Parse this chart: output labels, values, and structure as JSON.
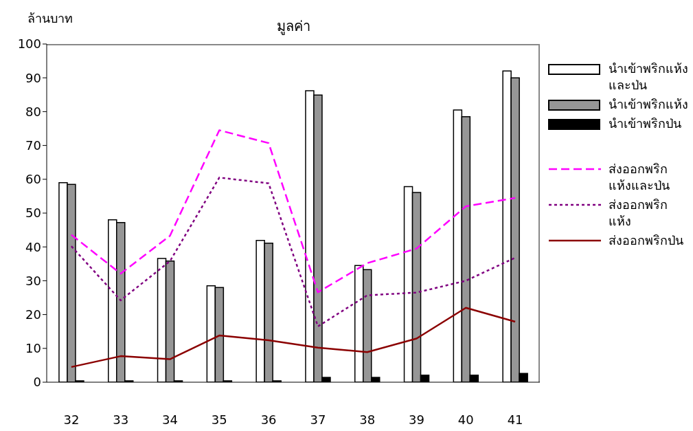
{
  "chart_data": {
    "type": "bar",
    "title": "มูลค่า",
    "ylabel": "ล้านบาท",
    "categories": [
      "32",
      "33",
      "34",
      "35",
      "36",
      "37",
      "38",
      "39",
      "40",
      "41"
    ],
    "series": [
      {
        "name": "นำเข้าพริกแห้งและป่น",
        "color": "#ffffff",
        "values": [
          59,
          48,
          36.6,
          28.5,
          41.9,
          86.2,
          34.5,
          57.8,
          80.5,
          92
        ]
      },
      {
        "name": "นำเข้าพริกแห้ง",
        "color": "#969696",
        "values": [
          58.5,
          47.2,
          35.8,
          28,
          41.1,
          84.9,
          33.3,
          56.1,
          78.5,
          90
        ]
      },
      {
        "name": "นำเข้าพริกป่น",
        "color": "#000000",
        "values": [
          0.4,
          0.4,
          0.4,
          0.4,
          0.4,
          1.4,
          1.4,
          2.1,
          2.1,
          2.6
        ]
      },
      {
        "name": "ส่งออกพริกแห้งและป่น",
        "type": "line",
        "line_style": "dashed",
        "color": "#ff00ff",
        "values": [
          43.6,
          32.1,
          43.3,
          74.5,
          70.7,
          26.6,
          35.2,
          39.5,
          52,
          54.5
        ]
      },
      {
        "name": "ส่งออกพริกแห้ง",
        "type": "line",
        "line_style": "dotted",
        "color": "#800080",
        "values": [
          40.2,
          24.2,
          35.8,
          60.5,
          58.8,
          16.5,
          25.7,
          26.5,
          30,
          36.8
        ]
      },
      {
        "name": "ส่งออกพริกป่น",
        "type": "line",
        "line_style": "solid",
        "color": "#8b0000",
        "values": [
          4.5,
          7.7,
          6.8,
          13.8,
          12.4,
          10.2,
          8.9,
          12.9,
          22,
          17.9
        ]
      }
    ],
    "ylim": [
      0,
      100
    ],
    "yticks": [
      0,
      10,
      20,
      30,
      40,
      50,
      60,
      70,
      80,
      90,
      100
    ],
    "grid": false,
    "legend": "right",
    "marker": "none"
  }
}
